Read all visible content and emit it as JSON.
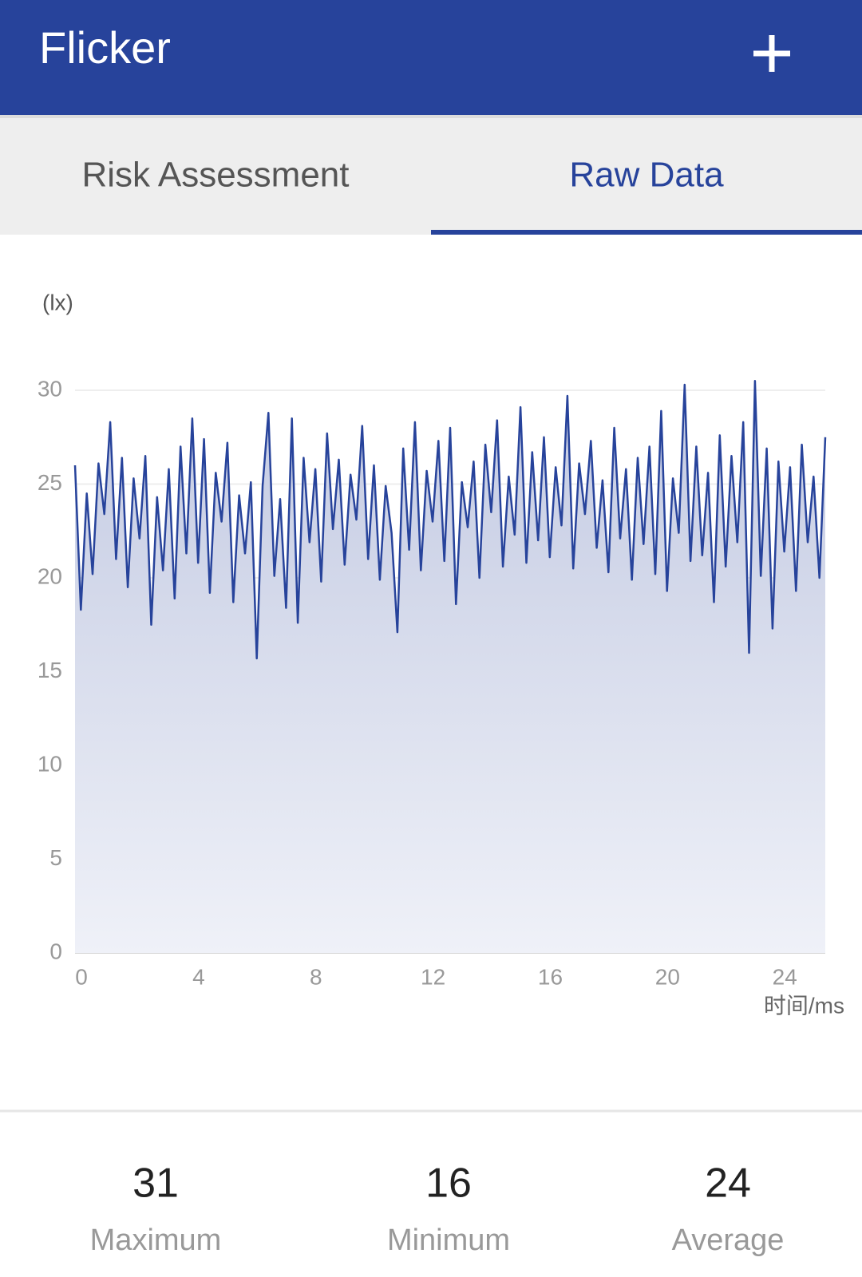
{
  "app_bar": {
    "title": "Flicker"
  },
  "tabs": [
    "Risk Assessment",
    "Raw Data"
  ],
  "chart_data": {
    "type": "area",
    "y_label": "(lx)",
    "x_label": "时间/ms",
    "xlim": [
      0,
      25.6
    ],
    "xticks": [
      0,
      4,
      8,
      12,
      16,
      20,
      24
    ],
    "ylim": [
      0,
      30
    ],
    "yticks": [
      0,
      5,
      10,
      15,
      20,
      25,
      30
    ],
    "grid": true,
    "color": "#27439b",
    "x": [
      0,
      0.2,
      0.4,
      0.6,
      0.8,
      1,
      1.2,
      1.4,
      1.6,
      1.8,
      2,
      2.2,
      2.4,
      2.6,
      2.8,
      3,
      3.2,
      3.4,
      3.6,
      3.8,
      4,
      4.2,
      4.4,
      4.6,
      4.8,
      5,
      5.2,
      5.4,
      5.6,
      5.8,
      6,
      6.2,
      6.4,
      6.6,
      6.8,
      7,
      7.2,
      7.4,
      7.6,
      7.8,
      8,
      8.2,
      8.4,
      8.6,
      8.8,
      9,
      9.2,
      9.4,
      9.6,
      9.8,
      10,
      10.2,
      10.4,
      10.6,
      10.8,
      11,
      11.2,
      11.4,
      11.6,
      11.8,
      12,
      12.2,
      12.4,
      12.6,
      12.8,
      13,
      13.2,
      13.4,
      13.6,
      13.8,
      14,
      14.2,
      14.4,
      14.6,
      14.8,
      15,
      15.2,
      15.4,
      15.6,
      15.8,
      16,
      16.2,
      16.4,
      16.6,
      16.8,
      17,
      17.2,
      17.4,
      17.6,
      17.8,
      18,
      18.2,
      18.4,
      18.6,
      18.8,
      19,
      19.2,
      19.4,
      19.6,
      19.8,
      20,
      20.2,
      20.4,
      20.6,
      20.8,
      21,
      21.2,
      21.4,
      21.6,
      21.8,
      22,
      22.2,
      22.4,
      22.6,
      22.8,
      23,
      23.2,
      23.4,
      23.6,
      23.8,
      24,
      24.2,
      24.4,
      24.6,
      24.8,
      25,
      25.2,
      25.4,
      25.6
    ],
    "values": [
      26.0,
      18.3,
      24.5,
      20.2,
      26.1,
      23.4,
      28.3,
      21.0,
      26.4,
      19.5,
      25.3,
      22.1,
      26.5,
      17.5,
      24.3,
      20.4,
      25.8,
      18.9,
      27.0,
      21.3,
      28.5,
      20.8,
      27.4,
      19.2,
      25.6,
      23.0,
      27.2,
      18.7,
      24.4,
      21.3,
      25.1,
      15.7,
      24.9,
      28.8,
      20.1,
      24.2,
      18.4,
      28.5,
      17.6,
      26.4,
      21.9,
      25.8,
      19.8,
      27.7,
      22.6,
      26.3,
      20.7,
      25.5,
      23.1,
      28.1,
      21.0,
      26.0,
      19.9,
      24.9,
      22.4,
      17.1,
      26.9,
      21.5,
      28.3,
      20.4,
      25.7,
      23.0,
      27.3,
      20.9,
      28.0,
      18.6,
      25.1,
      22.7,
      26.2,
      20.0,
      27.1,
      23.5,
      28.4,
      20.6,
      25.4,
      22.3,
      29.1,
      20.8,
      26.7,
      22.0,
      27.5,
      21.1,
      25.9,
      22.8,
      29.7,
      20.5,
      26.1,
      23.4,
      27.3,
      21.6,
      25.2,
      20.3,
      28.0,
      22.1,
      25.8,
      19.9,
      26.4,
      21.8,
      27.0,
      20.2,
      28.9,
      19.3,
      25.3,
      22.4,
      30.3,
      20.9,
      27.0,
      21.2,
      25.6,
      18.7,
      27.6,
      20.6,
      26.5,
      21.9,
      28.3,
      16.0,
      30.5,
      20.1,
      26.9,
      17.3,
      26.2,
      21.4,
      25.9,
      19.3,
      27.1,
      21.9,
      25.4,
      20.0,
      27.5
    ]
  },
  "stats": [
    {
      "value": 31,
      "label": "Maximum"
    },
    {
      "value": 16,
      "label": "Minimum"
    },
    {
      "value": 24,
      "label": "Average"
    }
  ]
}
